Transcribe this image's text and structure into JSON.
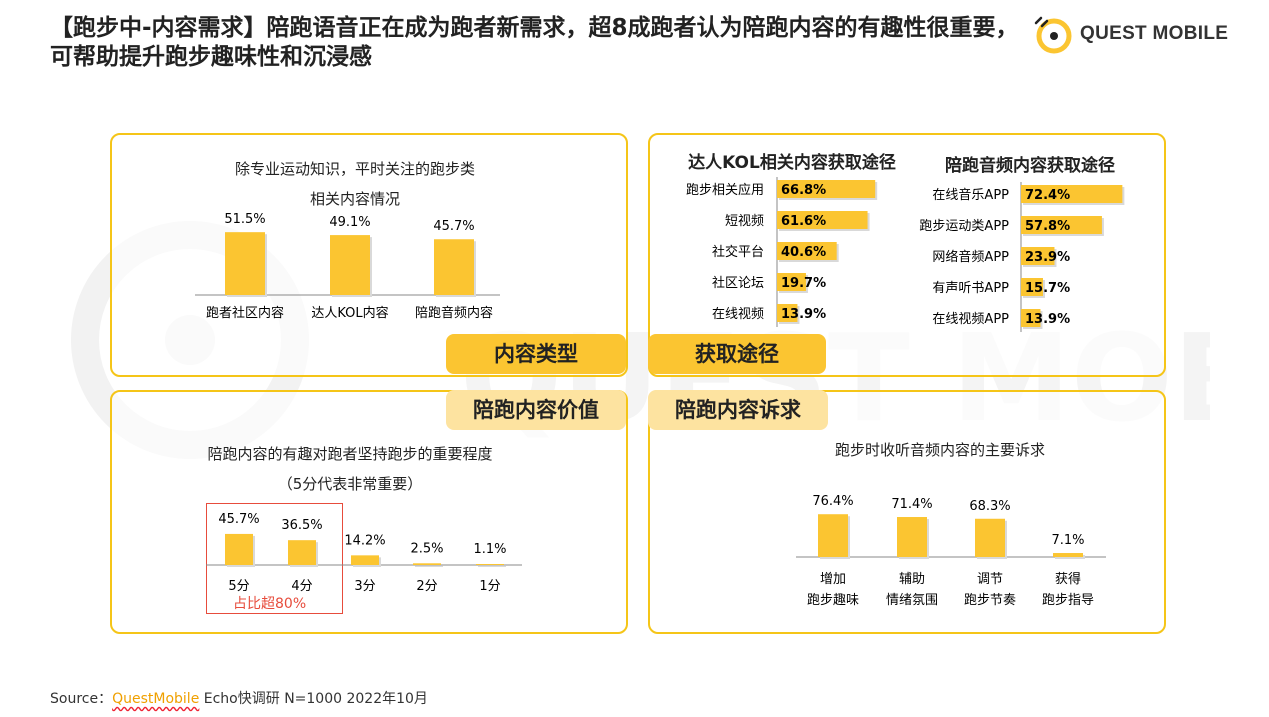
{
  "title": "【跑步中-内容需求】陪跑语音正在成为跑者新需求，超8成跑者认为陪跑内容的有趣性很重要，可帮助提升跑步趣味性和沉浸感",
  "logo_text": "QUEST MOBILE",
  "source": {
    "prefix": "Source：",
    "brand": "QuestMobile",
    "suffix": " Echo快调研 N=1000 2022年10月"
  },
  "colors": {
    "bar": "#fbc531",
    "accent": "#f5c518",
    "highlight": "#e74c3c"
  },
  "tags": {
    "content_type": "内容类型",
    "channel": "获取途径",
    "value": "陪跑内容价值",
    "appeal": "陪跑内容诉求"
  },
  "chart_data": [
    {
      "type": "bar",
      "title": "除专业运动知识，平时关注的跑步类相关内容情况",
      "title_line1": "除专业运动知识，平时关注的跑步类",
      "title_line2": "相关内容情况",
      "categories": [
        "跑者社区内容",
        "达人KOL内容",
        "陪跑音频内容"
      ],
      "values": [
        51.5,
        49.1,
        45.7
      ],
      "labels": [
        "51.5%",
        "49.1%",
        "45.7%"
      ],
      "unit": "%"
    },
    {
      "type": "bar",
      "orientation": "horizontal",
      "title": "达人KOL相关内容获取途径",
      "categories": [
        "跑步相关应用",
        "短视频",
        "社交平台",
        "社区论坛",
        "在线视频"
      ],
      "values": [
        66.8,
        61.6,
        40.6,
        19.7,
        13.9
      ],
      "labels": [
        "66.8%",
        "61.6%",
        "40.6%",
        "19.7%",
        "13.9%"
      ],
      "unit": "%"
    },
    {
      "type": "bar",
      "orientation": "horizontal",
      "title": "陪跑音频内容获取途径",
      "categories": [
        "在线音乐APP",
        "跑步运动类APP",
        "网络音频APP",
        "有声听书APP",
        "在线视频APP"
      ],
      "values": [
        72.4,
        57.8,
        23.9,
        15.7,
        13.9
      ],
      "labels": [
        "72.4%",
        "57.8%",
        "23.9%",
        "15.7%",
        "13.9%"
      ],
      "unit": "%"
    },
    {
      "type": "bar",
      "title": "陪跑内容的有趣对跑者坚持跑步的重要程度（5分代表非常重要）",
      "title_line1": "陪跑内容的有趣对跑者坚持跑步的重要程度",
      "title_line2": "（5分代表非常重要）",
      "categories": [
        "5分",
        "4分",
        "3分",
        "2分",
        "1分"
      ],
      "values": [
        45.7,
        36.5,
        14.2,
        2.5,
        1.1
      ],
      "labels": [
        "45.7%",
        "36.5%",
        "14.2%",
        "2.5%",
        "1.1%"
      ],
      "unit": "%",
      "annotation": "占比超80%"
    },
    {
      "type": "bar",
      "title": "跑步时收听音频内容的主要诉求",
      "categories": [
        "增加跑步趣味",
        "辅助情绪氛围",
        "调节跑步节奏",
        "获得跑步指导"
      ],
      "category_lines": [
        [
          "增加",
          "跑步趣味"
        ],
        [
          "辅助",
          "情绪氛围"
        ],
        [
          "调节",
          "跑步节奏"
        ],
        [
          "获得",
          "跑步指导"
        ]
      ],
      "values": [
        76.4,
        71.4,
        68.3,
        7.1
      ],
      "labels": [
        "76.4%",
        "71.4%",
        "68.3%",
        "7.1%"
      ],
      "unit": "%"
    }
  ]
}
